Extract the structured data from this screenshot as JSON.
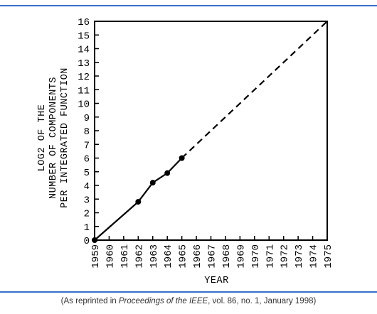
{
  "colors": {
    "rule": "#3a6fcc",
    "ink": "#000000",
    "caption": "#333333"
  },
  "caption": {
    "prefix": "(As reprinted in ",
    "journal": "Proceedings of the IEEE",
    "suffix": ", vol. 86, no. 1, January 1998)"
  },
  "chart_data": {
    "type": "line",
    "xlabel": "YEAR",
    "ylabel_lines": [
      "LOG2 OF THE",
      "NUMBER OF COMPONENTS",
      "PER INTEGRATED FUNCTION"
    ],
    "x_ticks": [
      1959,
      1960,
      1961,
      1962,
      1963,
      1964,
      1965,
      1966,
      1967,
      1968,
      1969,
      1970,
      1971,
      1972,
      1973,
      1974,
      1975
    ],
    "y_ticks": [
      0,
      1,
      2,
      3,
      4,
      5,
      6,
      7,
      8,
      9,
      10,
      11,
      12,
      13,
      14,
      15,
      16
    ],
    "xlim": [
      1959,
      1975
    ],
    "ylim": [
      0,
      16
    ],
    "grid": false,
    "series": [
      {
        "style": "solid-with-markers",
        "x": [
          1959,
          1962,
          1963,
          1964,
          1965
        ],
        "y": [
          0,
          2.8,
          4.2,
          4.9,
          6
        ]
      },
      {
        "style": "dashed",
        "x": [
          1965,
          1975
        ],
        "y": [
          6,
          16
        ]
      }
    ]
  }
}
